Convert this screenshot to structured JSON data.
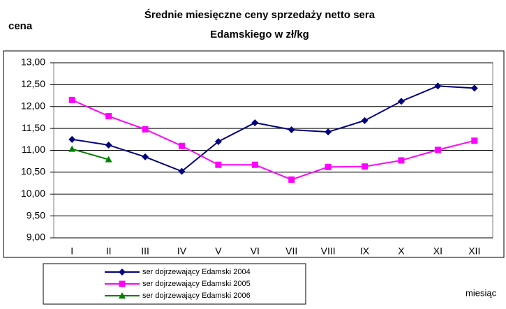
{
  "chart_data": {
    "type": "line",
    "title": [
      "Średnie miesięczne ceny sprzedaży netto sera",
      "Edamskiego w zł/kg"
    ],
    "y_label": "cena",
    "x_label": "miesiąc",
    "categories": [
      "I",
      "II",
      "III",
      "IV",
      "V",
      "VI",
      "VII",
      "VIII",
      "IX",
      "X",
      "XI",
      "XII"
    ],
    "series": [
      {
        "name": "ser dojrzewający Edamski 2004",
        "color": "#000080",
        "marker": "diamond",
        "values": [
          11.25,
          11.12,
          10.85,
          10.52,
          11.2,
          11.63,
          11.47,
          11.42,
          11.68,
          12.12,
          12.47,
          12.42
        ]
      },
      {
        "name": "ser dojrzewający Edamski 2005",
        "color": "#ff00ff",
        "marker": "square",
        "values": [
          12.15,
          11.78,
          11.48,
          11.1,
          10.67,
          10.67,
          10.33,
          10.62,
          10.63,
          10.77,
          11.01,
          11.22
        ]
      },
      {
        "name": "ser dojrzewający Edamski 2006",
        "color": "#008000",
        "marker": "triangle",
        "values": [
          11.03,
          10.79,
          null,
          null,
          null,
          null,
          null,
          null,
          null,
          null,
          null,
          null
        ]
      }
    ],
    "ylim": [
      9,
      13
    ],
    "yticks": [
      {
        "value": 9,
        "label": "9,00"
      },
      {
        "value": 9.5,
        "label": "9,50"
      },
      {
        "value": 10,
        "label": "10,00"
      },
      {
        "value": 10.5,
        "label": "10,50"
      },
      {
        "value": 11,
        "label": "11,00"
      },
      {
        "value": 11.5,
        "label": "11,50"
      },
      {
        "value": 12,
        "label": "12,00"
      },
      {
        "value": 12.5,
        "label": "12,50"
      },
      {
        "value": 13,
        "label": "13,00"
      }
    ],
    "grid": true
  }
}
